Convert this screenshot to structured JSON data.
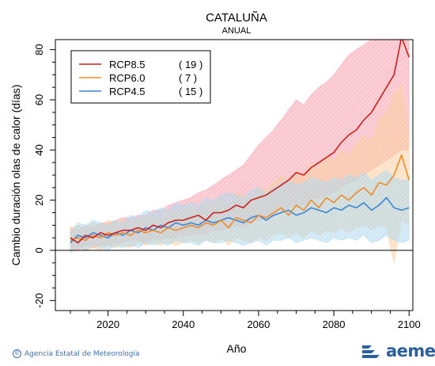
{
  "chart_data": {
    "type": "line",
    "title": "CATALUÑA",
    "subtitle": "ANUAL",
    "xlabel": "Año",
    "ylabel": "Cambio duración olas de calor (días)",
    "xlim": [
      2006,
      2101
    ],
    "ylim": [
      -24,
      84
    ],
    "xticks": [
      2020,
      2040,
      2060,
      2080,
      2100
    ],
    "yticks": [
      -20,
      0,
      20,
      40,
      60,
      80
    ],
    "legend_position": "top-left",
    "grid": false,
    "baseline": 0,
    "series": [
      {
        "name": "RCP8.5",
        "count": "( 19 )",
        "color": "#cc1f1f",
        "band_color": "#f7a8b3",
        "x": [
          2010,
          2012,
          2014,
          2016,
          2018,
          2020,
          2022,
          2024,
          2026,
          2028,
          2030,
          2032,
          2034,
          2036,
          2038,
          2040,
          2042,
          2044,
          2046,
          2048,
          2050,
          2052,
          2054,
          2056,
          2058,
          2060,
          2062,
          2064,
          2066,
          2068,
          2070,
          2072,
          2074,
          2076,
          2078,
          2080,
          2082,
          2084,
          2086,
          2088,
          2090,
          2092,
          2094,
          2096,
          2098,
          2100
        ],
        "values": [
          5,
          3,
          6,
          5,
          7,
          6,
          7,
          8,
          8,
          9,
          8,
          10,
          9,
          11,
          12,
          12,
          13,
          14,
          12,
          15,
          15,
          16,
          18,
          17,
          20,
          21,
          22,
          24,
          26,
          28,
          31,
          30,
          33,
          35,
          37,
          39,
          43,
          46,
          48,
          52,
          55,
          60,
          65,
          70,
          85,
          77
        ],
        "upper": [
          9,
          8,
          10,
          9,
          11,
          11,
          12,
          13,
          13,
          14,
          14,
          16,
          16,
          18,
          19,
          20,
          21,
          23,
          24,
          26,
          28,
          30,
          32,
          34,
          38,
          42,
          45,
          48,
          52,
          56,
          60,
          58,
          62,
          65,
          67,
          70,
          74,
          78,
          80,
          82,
          84,
          84,
          84,
          84,
          84,
          84
        ],
        "lower": [
          1,
          0,
          2,
          1,
          2,
          2,
          3,
          3,
          4,
          4,
          3,
          5,
          4,
          5,
          5,
          6,
          6,
          7,
          6,
          8,
          8,
          9,
          10,
          9,
          11,
          12,
          13,
          14,
          15,
          17,
          18,
          18,
          20,
          21,
          22,
          23,
          25,
          27,
          28,
          30,
          32,
          34,
          36,
          38,
          40,
          40
        ]
      },
      {
        "name": "RCP6.0",
        "count": "(  7 )",
        "color": "#f08a2a",
        "band_color": "#fbd3a8",
        "x": [
          2010,
          2012,
          2014,
          2016,
          2018,
          2020,
          2022,
          2024,
          2026,
          2028,
          2030,
          2032,
          2034,
          2036,
          2038,
          2040,
          2042,
          2044,
          2046,
          2048,
          2050,
          2052,
          2054,
          2056,
          2058,
          2060,
          2062,
          2064,
          2066,
          2068,
          2070,
          2072,
          2074,
          2076,
          2078,
          2080,
          2082,
          2084,
          2086,
          2088,
          2090,
          2092,
          2094,
          2096,
          2098,
          2100
        ],
        "values": [
          4,
          5,
          4,
          6,
          5,
          7,
          6,
          7,
          6,
          8,
          7,
          8,
          7,
          9,
          8,
          9,
          10,
          9,
          11,
          10,
          12,
          9,
          13,
          12,
          11,
          14,
          13,
          15,
          17,
          14,
          18,
          16,
          20,
          17,
          21,
          19,
          22,
          20,
          23,
          25,
          22,
          27,
          26,
          30,
          38,
          28
        ],
        "upper": [
          9,
          10,
          9,
          11,
          10,
          12,
          11,
          12,
          11,
          13,
          13,
          14,
          13,
          15,
          15,
          16,
          17,
          16,
          19,
          18,
          21,
          18,
          23,
          22,
          21,
          25,
          24,
          27,
          30,
          27,
          32,
          30,
          35,
          33,
          38,
          36,
          40,
          38,
          42,
          46,
          44,
          52,
          55,
          62,
          66,
          45
        ],
        "lower": [
          0,
          1,
          0,
          1,
          0,
          2,
          1,
          2,
          1,
          3,
          2,
          3,
          2,
          3,
          2,
          3,
          4,
          3,
          4,
          3,
          5,
          2,
          5,
          4,
          3,
          5,
          4,
          6,
          7,
          5,
          7,
          5,
          8,
          6,
          8,
          7,
          9,
          7,
          9,
          10,
          8,
          10,
          9,
          -5,
          12,
          10
        ]
      },
      {
        "name": "RCP4.5",
        "count": "( 15 )",
        "color": "#3a86d6",
        "band_color": "#b6dcef",
        "x": [
          2010,
          2012,
          2014,
          2016,
          2018,
          2020,
          2022,
          2024,
          2026,
          2028,
          2030,
          2032,
          2034,
          2036,
          2038,
          2040,
          2042,
          2044,
          2046,
          2048,
          2050,
          2052,
          2054,
          2056,
          2058,
          2060,
          2062,
          2064,
          2066,
          2068,
          2070,
          2072,
          2074,
          2076,
          2078,
          2080,
          2082,
          2084,
          2086,
          2088,
          2090,
          2092,
          2094,
          2096,
          2098,
          2100
        ],
        "values": [
          3,
          6,
          5,
          7,
          6,
          5,
          7,
          6,
          8,
          7,
          9,
          8,
          10,
          9,
          11,
          10,
          11,
          10,
          12,
          11,
          12,
          13,
          12,
          11,
          13,
          14,
          12,
          14,
          15,
          16,
          14,
          15,
          17,
          16,
          15,
          17,
          16,
          18,
          17,
          19,
          16,
          18,
          21,
          17,
          16,
          17
        ],
        "upper": [
          7,
          11,
          10,
          12,
          11,
          10,
          12,
          11,
          14,
          13,
          16,
          15,
          17,
          16,
          19,
          18,
          19,
          18,
          21,
          20,
          22,
          23,
          22,
          21,
          24,
          25,
          23,
          25,
          27,
          28,
          26,
          27,
          29,
          28,
          27,
          29,
          28,
          30,
          29,
          31,
          28,
          30,
          32,
          29,
          28,
          28
        ],
        "lower": [
          -1,
          1,
          0,
          2,
          1,
          0,
          2,
          1,
          2,
          1,
          3,
          2,
          3,
          2,
          4,
          3,
          3,
          2,
          4,
          3,
          3,
          4,
          3,
          2,
          3,
          4,
          2,
          4,
          4,
          5,
          3,
          4,
          5,
          4,
          3,
          5,
          4,
          5,
          4,
          6,
          3,
          4,
          6,
          4,
          3,
          4
        ]
      }
    ]
  },
  "footer": {
    "copyright_symbol": "©",
    "credit": "Agencia Estatal de Meteorología",
    "logo_text": "aemet"
  }
}
